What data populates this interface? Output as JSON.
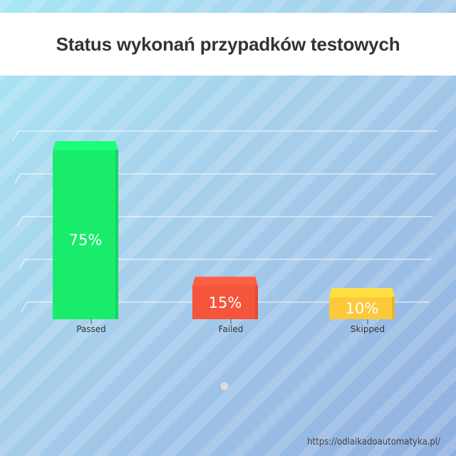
{
  "chart_data": {
    "type": "bar",
    "title": "Status wykonań przypadków testowych",
    "categories": [
      "Passed",
      "Failed",
      "Skipped"
    ],
    "values": [
      75,
      15,
      10
    ],
    "data_labels": [
      "75%",
      "15%",
      "10%"
    ],
    "colors": [
      "#19ec6b",
      "#f5553a",
      "#fdc93a"
    ],
    "ylim": [
      0,
      75
    ],
    "grid": true
  },
  "footer": {
    "url": "https://odlaikadoautomatyka.pl/"
  }
}
